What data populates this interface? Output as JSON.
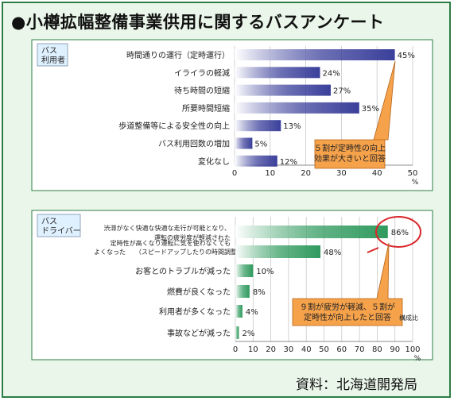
{
  "title": "●小樽拡幅整備事業供用に関するバスアンケート",
  "source": "資料：北海道開発局",
  "colors": {
    "frame": "#2e7d46",
    "background": "#eaf6ea",
    "bar_passenger": "#3a3f9a",
    "bar_driver": "#2f9a5e",
    "callout": "#f5a24b",
    "highlight_circle": "#d9262a"
  },
  "chart_data": [
    {
      "type": "bar",
      "orientation": "horizontal",
      "panel_label": [
        "バス",
        "利用者"
      ],
      "categories": [
        "時間通りの運行（定時運行）",
        "イライラの軽減",
        "待ち時間の短縮",
        "所要時間短縮",
        "歩道整備等による安全性の向上",
        "バス利用回数の増加",
        "変化なし"
      ],
      "values": [
        45,
        24,
        27,
        35,
        13,
        5,
        12
      ],
      "value_labels": [
        "45%",
        "24%",
        "27%",
        "35%",
        "13%",
        "5%",
        "12%"
      ],
      "xlim": [
        0,
        50
      ],
      "xticks": [
        "0",
        "10",
        "20",
        "30",
        "40",
        "50"
      ],
      "xunit": "%",
      "grid": true,
      "annotation": [
        "５割が定時性の向上",
        "効果が大きいと回答"
      ]
    },
    {
      "type": "bar",
      "orientation": "horizontal",
      "panel_label": [
        "バス",
        "ドライバー"
      ],
      "categories": [
        [
          "渋滞がなく快適な快適な走行が可能となり、",
          "運転の疲労度が軽減された"
        ],
        [
          "定時性が高くなり運転に気を使わなくても",
          "よくなった",
          "（スピードアップしたりの時間調整）"
        ],
        [
          "お客とのトラブルが減った"
        ],
        [
          "燃費が良くなった"
        ],
        [
          "利用者が多くなった"
        ],
        [
          "事故などが減った"
        ]
      ],
      "values": [
        86,
        48,
        10,
        8,
        4,
        2
      ],
      "value_labels": [
        "86%",
        "48%",
        "10%",
        "8%",
        "4%",
        "2%"
      ],
      "xlim": [
        0,
        100
      ],
      "xticks": [
        "0",
        "10",
        "20",
        "30",
        "40",
        "50",
        "60",
        "70",
        "80",
        "90",
        "100"
      ],
      "xunit": "%",
      "grid": true,
      "annotation": [
        "９割が疲労が軽減、５割が",
        "定時性が向上したと回答"
      ],
      "annotation_small": "構成比"
    }
  ]
}
